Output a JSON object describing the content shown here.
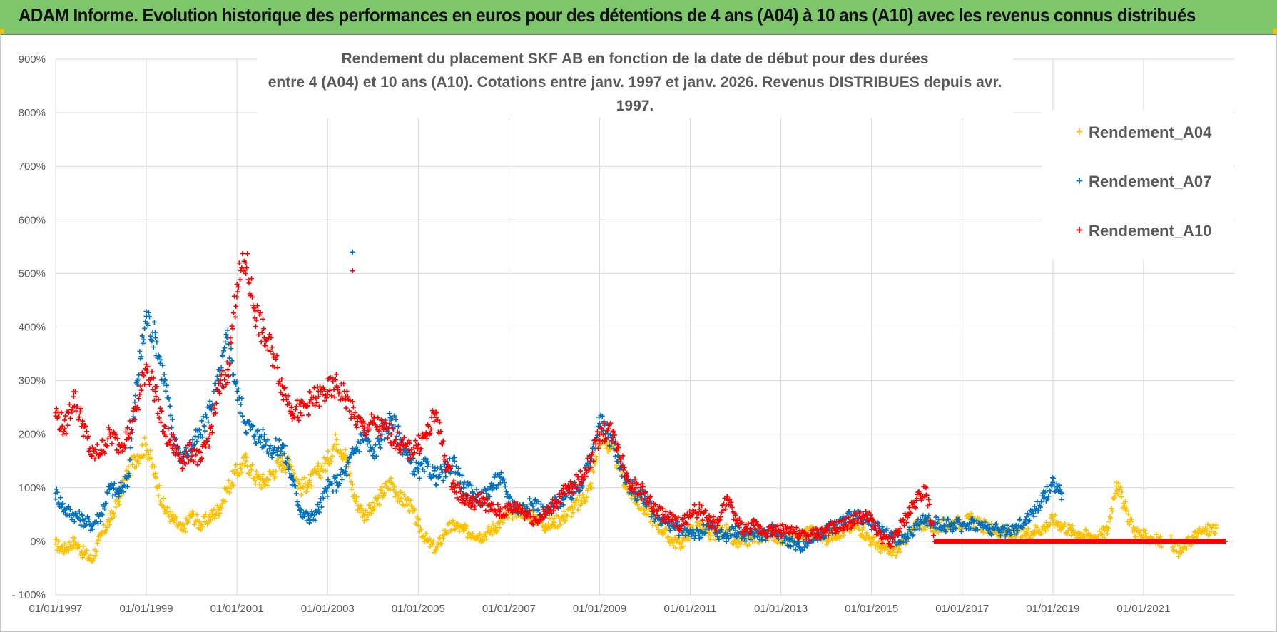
{
  "banner": {
    "title": "ADAM Informe. Evolution historique des performances en euros pour des détentions de 4 ans (A04) à 10 ans (A10) avec les revenus connus distribués"
  },
  "chart_data": {
    "type": "scatter",
    "title_line1": "Rendement du placement SKF AB en fonction de la date de début pour des durées",
    "title_line2": "entre 4 (A04) et 10 ans (A10).  Cotations entre janv. 1997 et janv. 2026. Revenus DISTRIBUES depuis avr. 1997.",
    "xlabel": "",
    "ylabel": "",
    "grid": true,
    "legend_position": "top-right",
    "xlim": [
      1997.0,
      2023.0
    ],
    "ylim": [
      -100,
      900
    ],
    "x_ticks": [
      {
        "value": 1997,
        "label": "01/01/1997"
      },
      {
        "value": 1999,
        "label": "01/01/1999"
      },
      {
        "value": 2001,
        "label": "01/01/2001"
      },
      {
        "value": 2003,
        "label": "01/01/2003"
      },
      {
        "value": 2005,
        "label": "01/01/2005"
      },
      {
        "value": 2007,
        "label": "01/01/2007"
      },
      {
        "value": 2009,
        "label": "01/01/2009"
      },
      {
        "value": 2011,
        "label": "01/01/2011"
      },
      {
        "value": 2013,
        "label": "01/01/2013"
      },
      {
        "value": 2015,
        "label": "01/01/2015"
      },
      {
        "value": 2017,
        "label": "01/01/2017"
      },
      {
        "value": 2019,
        "label": "01/01/2019"
      },
      {
        "value": 2021,
        "label": "01/01/2021"
      }
    ],
    "y_ticks": [
      {
        "value": 900,
        "label": "900%"
      },
      {
        "value": 800,
        "label": "800%"
      },
      {
        "value": 700,
        "label": "700%"
      },
      {
        "value": 600,
        "label": "600%"
      },
      {
        "value": 500,
        "label": "500%"
      },
      {
        "value": 400,
        "label": "400%"
      },
      {
        "value": 300,
        "label": "300%"
      },
      {
        "value": 200,
        "label": "200%"
      },
      {
        "value": 100,
        "label": "100%"
      },
      {
        "value": 0,
        "label": "0%"
      },
      {
        "value": -100,
        "label": "- 100%"
      }
    ],
    "series": [
      {
        "name": "Rendement_A04",
        "color": "#ffc000",
        "marker": "+",
        "x": [
          1997.0,
          1997.2,
          1997.4,
          1997.6,
          1997.8,
          1998.0,
          1998.2,
          1998.4,
          1998.6,
          1998.8,
          1999.0,
          1999.2,
          1999.4,
          1999.6,
          1999.8,
          2000.0,
          2000.2,
          2000.4,
          2000.6,
          2000.8,
          2001.0,
          2001.2,
          2001.4,
          2001.6,
          2001.8,
          2002.0,
          2002.2,
          2002.4,
          2002.6,
          2002.8,
          2003.0,
          2003.2,
          2003.4,
          2003.6,
          2003.8,
          2004.0,
          2004.2,
          2004.4,
          2004.6,
          2004.8,
          2005.0,
          2005.2,
          2005.4,
          2005.6,
          2005.8,
          2006.0,
          2006.2,
          2006.4,
          2006.6,
          2006.8,
          2007.0,
          2007.2,
          2007.4,
          2007.6,
          2007.8,
          2008.0,
          2008.2,
          2008.4,
          2008.6,
          2008.8,
          2009.0,
          2009.2,
          2009.4,
          2009.6,
          2009.8,
          2010.0,
          2010.2,
          2010.4,
          2010.6,
          2010.8,
          2011.0,
          2011.2,
          2011.4,
          2011.6,
          2011.8,
          2012.0,
          2012.2,
          2012.4,
          2012.6,
          2012.8,
          2013.0,
          2013.2,
          2013.4,
          2013.6,
          2013.8,
          2014.0,
          2014.2,
          2014.4,
          2014.6,
          2014.8,
          2015.0,
          2015.2,
          2015.4,
          2015.6,
          2015.8,
          2016.0,
          2016.2,
          2016.4,
          2016.6,
          2016.8,
          2017.0,
          2017.2,
          2017.4,
          2017.6,
          2017.8,
          2018.0,
          2018.2,
          2018.4,
          2018.6,
          2018.8,
          2019.0,
          2019.2,
          2019.4,
          2019.6,
          2019.8,
          2020.0,
          2020.2,
          2020.4,
          2020.6,
          2020.8,
          2021.0,
          2021.2,
          2021.4,
          2021.6,
          2021.8,
          2022.0,
          2022.2,
          2022.4,
          2022.6
        ],
        "y": [
          -5,
          -15,
          0,
          -20,
          -35,
          10,
          40,
          80,
          130,
          160,
          180,
          120,
          60,
          40,
          20,
          50,
          30,
          45,
          60,
          100,
          130,
          150,
          120,
          110,
          130,
          150,
          140,
          100,
          110,
          130,
          150,
          190,
          160,
          80,
          50,
          60,
          90,
          110,
          80,
          70,
          30,
          0,
          -15,
          20,
          30,
          20,
          15,
          10,
          20,
          35,
          50,
          60,
          55,
          45,
          30,
          35,
          45,
          60,
          75,
          100,
          200,
          180,
          150,
          100,
          80,
          60,
          40,
          20,
          0,
          -5,
          20,
          30,
          10,
          15,
          20,
          -5,
          0,
          5,
          10,
          15,
          5,
          0,
          10,
          20,
          15,
          5,
          15,
          20,
          30,
          20,
          0,
          -10,
          -20,
          -15,
          10,
          30,
          35,
          25,
          30,
          35,
          35,
          40,
          30,
          25,
          20,
          15,
          10,
          15,
          20,
          25,
          40,
          30,
          20,
          15,
          10,
          10,
          20,
          110,
          60,
          20,
          10,
          5,
          0,
          0,
          -20,
          0,
          15,
          20,
          25
        ]
      },
      {
        "name": "Rendement_A07",
        "color": "#0070c0",
        "marker": "+",
        "x": [
          1997.0,
          1997.2,
          1997.4,
          1997.6,
          1997.8,
          1998.0,
          1998.2,
          1998.4,
          1998.6,
          1998.8,
          1999.0,
          1999.2,
          1999.4,
          1999.6,
          1999.8,
          2000.0,
          2000.2,
          2000.4,
          2000.6,
          2000.8,
          2001.0,
          2001.2,
          2001.4,
          2001.6,
          2001.8,
          2002.0,
          2002.2,
          2002.4,
          2002.6,
          2002.8,
          2003.0,
          2003.2,
          2003.4,
          2003.6,
          2003.8,
          2004.0,
          2004.2,
          2004.4,
          2004.6,
          2004.8,
          2005.0,
          2005.2,
          2005.4,
          2005.6,
          2005.8,
          2006.0,
          2006.2,
          2006.4,
          2006.6,
          2006.8,
          2007.0,
          2007.2,
          2007.4,
          2007.6,
          2007.8,
          2008.0,
          2008.2,
          2008.4,
          2008.6,
          2008.8,
          2009.0,
          2009.2,
          2009.4,
          2009.6,
          2009.8,
          2010.0,
          2010.2,
          2010.4,
          2010.6,
          2010.8,
          2011.0,
          2011.2,
          2011.4,
          2011.6,
          2011.8,
          2012.0,
          2012.2,
          2012.4,
          2012.6,
          2012.8,
          2013.0,
          2013.2,
          2013.4,
          2013.6,
          2013.8,
          2014.0,
          2014.2,
          2014.4,
          2014.6,
          2014.8,
          2015.0,
          2015.2,
          2015.4,
          2015.6,
          2015.8,
          2016.0,
          2016.2,
          2016.4,
          2016.6,
          2016.8,
          2017.0,
          2017.2,
          2017.4,
          2017.6,
          2017.8,
          2018.0,
          2018.2,
          2018.4,
          2018.6,
          2018.8,
          2019.0,
          2019.2
        ],
        "y": [
          90,
          60,
          50,
          40,
          30,
          50,
          100,
          90,
          120,
          300,
          420,
          380,
          300,
          200,
          150,
          180,
          200,
          250,
          300,
          380,
          280,
          220,
          200,
          190,
          170,
          180,
          120,
          60,
          40,
          60,
          100,
          110,
          130,
          170,
          200,
          160,
          200,
          230,
          190,
          150,
          130,
          140,
          120,
          130,
          150,
          100,
          90,
          80,
          100,
          120,
          80,
          60,
          65,
          70,
          50,
          70,
          80,
          90,
          110,
          150,
          220,
          200,
          160,
          110,
          90,
          80,
          50,
          40,
          30,
          20,
          20,
          10,
          30,
          15,
          10,
          20,
          10,
          15,
          10,
          20,
          10,
          0,
          -10,
          0,
          10,
          20,
          30,
          40,
          50,
          40,
          30,
          20,
          10,
          0,
          10,
          30,
          40,
          35,
          30,
          30,
          30,
          35,
          30,
          25,
          20,
          20,
          25,
          40,
          60,
          80,
          110,
          90
        ]
      },
      {
        "name": "Rendement_A10",
        "color": "#ff0000",
        "marker": "+",
        "x": [
          1997.0,
          1997.2,
          1997.4,
          1997.6,
          1997.8,
          1998.0,
          1998.2,
          1998.4,
          1998.6,
          1998.8,
          1999.0,
          1999.2,
          1999.4,
          1999.6,
          1999.8,
          2000.0,
          2000.2,
          2000.4,
          2000.6,
          2000.8,
          2001.0,
          2001.2,
          2001.4,
          2001.6,
          2001.8,
          2002.0,
          2002.2,
          2002.4,
          2002.6,
          2002.8,
          2003.0,
          2003.2,
          2003.4,
          2003.6,
          2003.8,
          2004.0,
          2004.2,
          2004.4,
          2004.6,
          2004.8,
          2005.0,
          2005.2,
          2005.4,
          2005.6,
          2005.8,
          2006.0,
          2006.2,
          2006.4,
          2006.6,
          2006.8,
          2007.0,
          2007.2,
          2007.4,
          2007.6,
          2007.8,
          2008.0,
          2008.2,
          2008.4,
          2008.6,
          2008.8,
          2009.0,
          2009.2,
          2009.4,
          2009.6,
          2009.8,
          2010.0,
          2010.2,
          2010.4,
          2010.6,
          2010.8,
          2011.0,
          2011.2,
          2011.4,
          2011.6,
          2011.8,
          2012.0,
          2012.2,
          2012.4,
          2012.6,
          2012.8,
          2013.0,
          2013.2,
          2013.4,
          2013.6,
          2013.8,
          2014.0,
          2014.2,
          2014.4,
          2014.6,
          2014.8,
          2015.0,
          2015.2,
          2015.4,
          2015.6,
          2015.8,
          2016.0,
          2016.2,
          2016.4,
          2016.6,
          2016.8,
          2017.0,
          2017.2,
          2017.4,
          2017.6,
          2017.8,
          2018.0,
          2018.2,
          2018.4,
          2018.6,
          2018.8,
          2019.0,
          2019.2,
          2019.4,
          2019.6,
          2019.8,
          2020.0,
          2020.2,
          2020.4,
          2020.6,
          2020.8,
          2021.0,
          2021.2,
          2021.4,
          2021.6,
          2021.8,
          2022.0,
          2022.2,
          2022.4,
          2022.6,
          2022.8
        ],
        "y": [
          240,
          210,
          270,
          220,
          160,
          170,
          200,
          180,
          200,
          250,
          330,
          280,
          200,
          180,
          150,
          170,
          150,
          200,
          280,
          320,
          480,
          520,
          430,
          380,
          350,
          290,
          250,
          240,
          260,
          270,
          280,
          290,
          270,
          230,
          210,
          220,
          210,
          200,
          180,
          170,
          180,
          200,
          240,
          150,
          100,
          80,
          70,
          80,
          60,
          55,
          60,
          65,
          50,
          40,
          50,
          70,
          90,
          100,
          120,
          150,
          200,
          210,
          180,
          120,
          100,
          90,
          60,
          50,
          40,
          30,
          50,
          60,
          40,
          30,
          80,
          40,
          20,
          30,
          20,
          20,
          20,
          25,
          10,
          10,
          15,
          20,
          25,
          30,
          40,
          45,
          40,
          10,
          -5,
          20,
          50,
          80,
          100,
          0,
          0,
          0,
          0,
          0,
          0,
          0,
          0,
          0,
          0,
          0,
          0,
          0,
          0,
          0,
          0,
          0,
          0,
          0,
          0,
          0,
          0,
          0,
          0,
          0,
          0,
          0,
          0,
          0,
          0,
          0,
          0,
          0
        ]
      }
    ],
    "outliers": [
      {
        "series": "Rendement_A07",
        "x": 2003.55,
        "y": 540
      },
      {
        "series": "Rendement_A10",
        "x": 2003.55,
        "y": 505
      }
    ]
  }
}
